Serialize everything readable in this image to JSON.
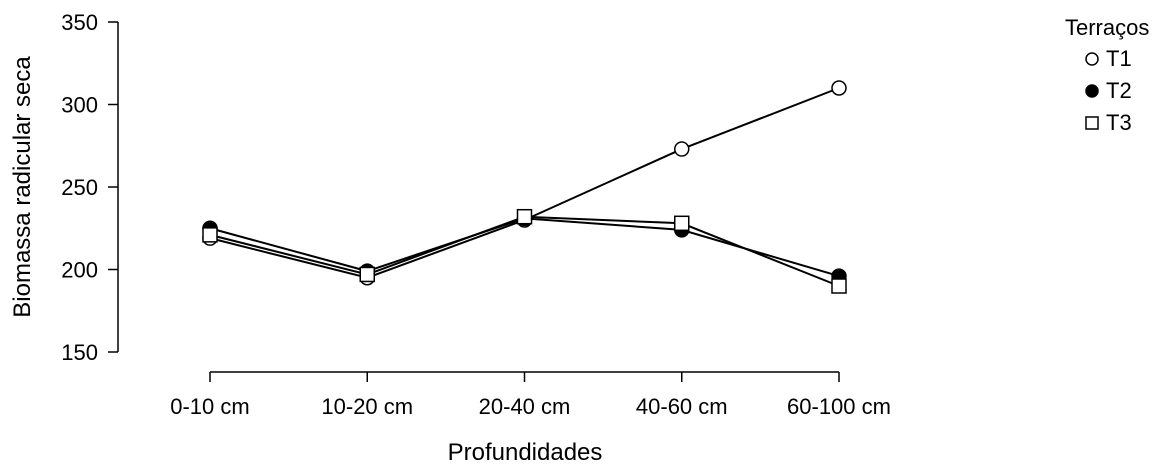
{
  "chart_data": {
    "type": "line",
    "xlabel": "Profundidades",
    "ylabel": "Biomassa radicular seca",
    "categories": [
      "0-10 cm",
      "10-20 cm",
      "20-40 cm",
      "40-60 cm",
      "60-100 cm"
    ],
    "ylim": [
      150,
      350
    ],
    "yticks": [
      150,
      200,
      250,
      300,
      350
    ],
    "legend_title": "Terraços",
    "legend_position": "right",
    "series": [
      {
        "name": "T1",
        "marker": "open-circle",
        "values": [
          219,
          195,
          230,
          273,
          310
        ]
      },
      {
        "name": "T2",
        "marker": "filled-circle",
        "values": [
          225,
          199,
          231,
          224,
          196
        ]
      },
      {
        "name": "T3",
        "marker": "open-square",
        "values": [
          221,
          197,
          232,
          228,
          190
        ]
      }
    ]
  }
}
